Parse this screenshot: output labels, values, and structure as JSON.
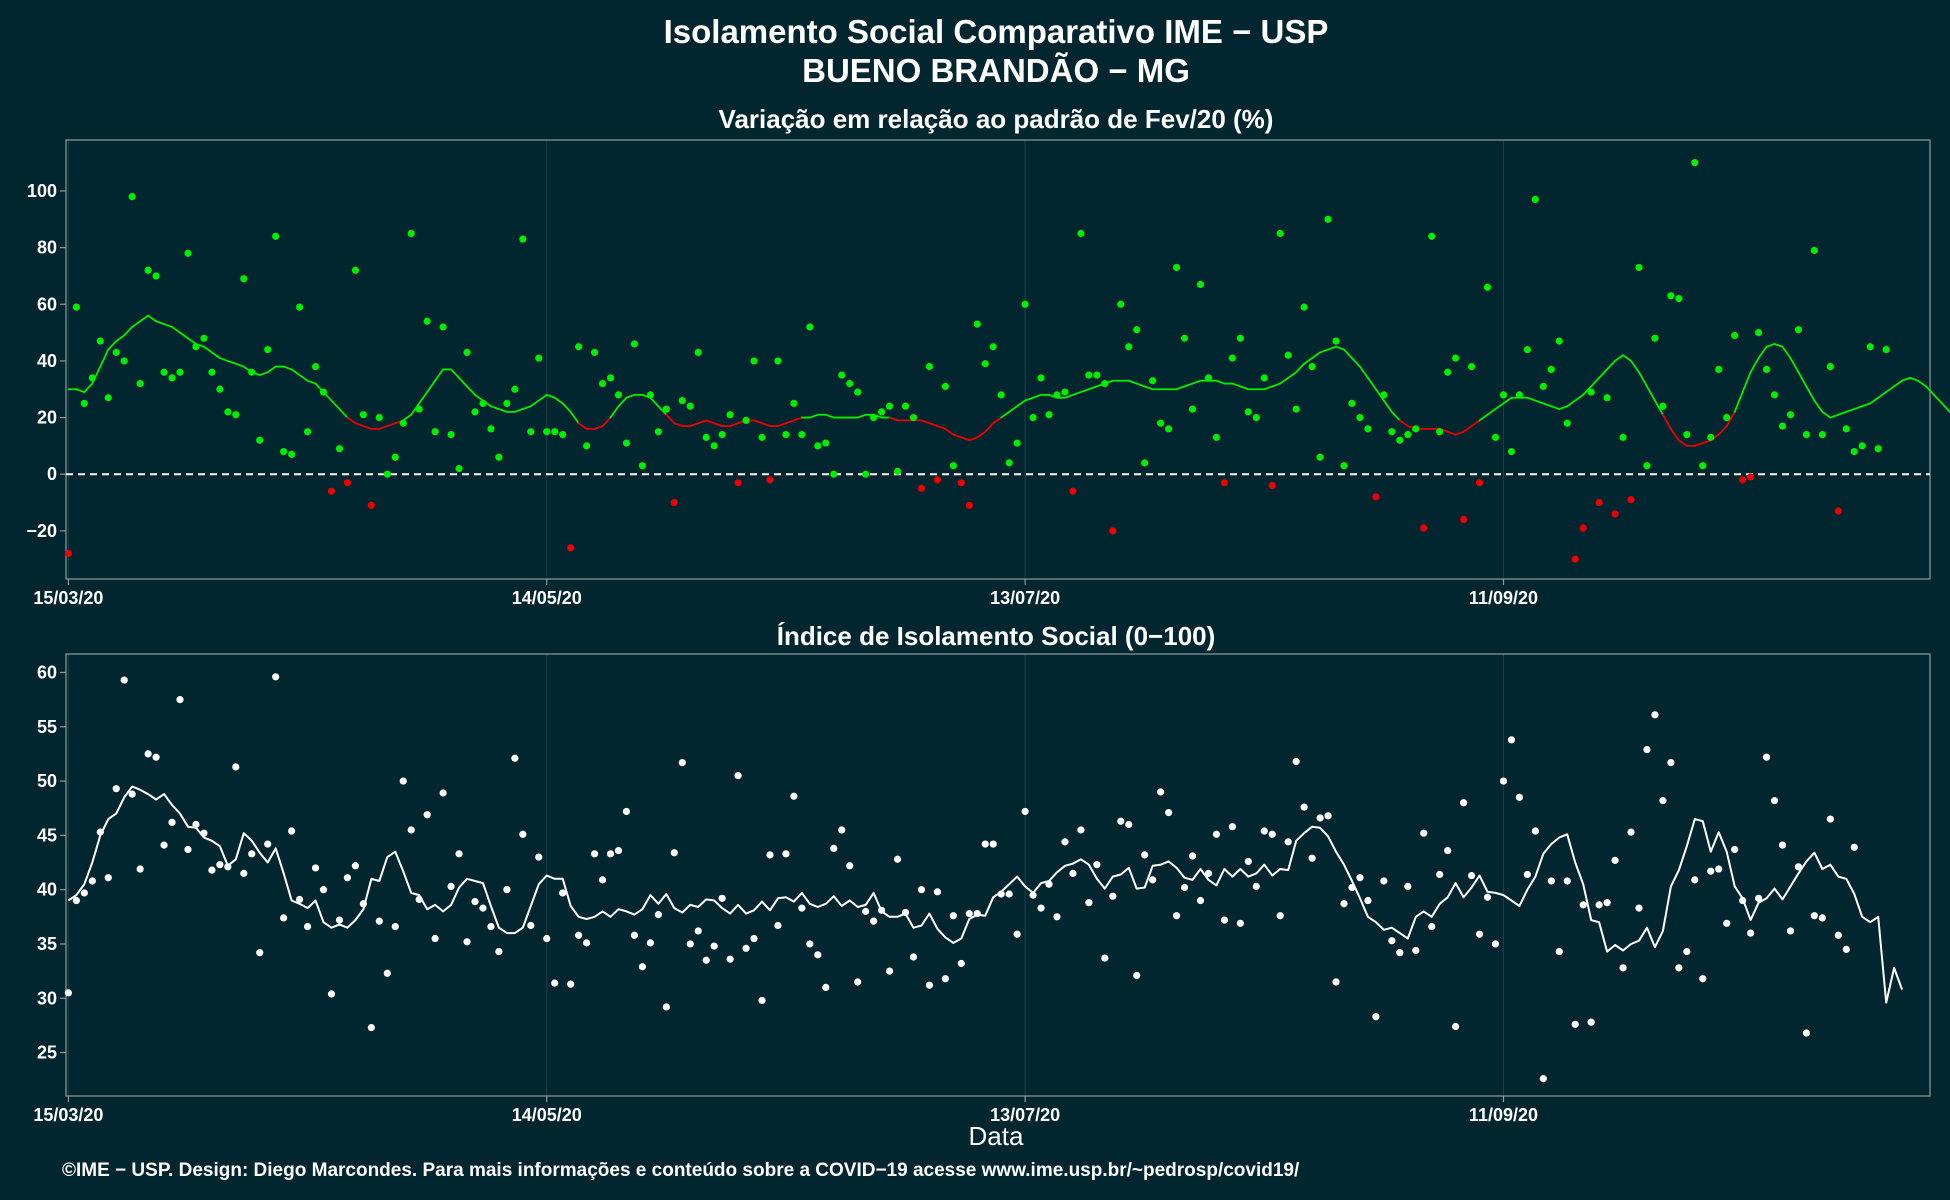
{
  "header": {
    "title_line1": "Isolamento Social Comparativo IME − USP",
    "title_line2": "BUENO BRANDÃO − MG"
  },
  "x_axis_label": "Data",
  "footer": "©IME − USP. Design: Diego Marcondes. Para mais informações e conteúdo sobre a COVID−19 acesse www.ime.usp.br/~pedrosp/covid19/",
  "colors": {
    "background": "#02262f",
    "positive": "#00ee00",
    "negative": "#ee0000",
    "index": "#ffffff",
    "frame": "#8a9aa0",
    "grid": "#1c3c44"
  },
  "chart_data": [
    {
      "type": "scatter",
      "title": "Variação em relação ao padrão de Fev/20 (%)",
      "x_start": "15/03/20",
      "x_tick_labels": [
        "15/03/20",
        "14/05/20",
        "13/07/20",
        "11/09/20"
      ],
      "x_tick_days": [
        0,
        60,
        120,
        180
      ],
      "xlim_days": [
        -0.3,
        233.5
      ],
      "ylim": [
        -37,
        118
      ],
      "y_ticks": [
        -20,
        0,
        20,
        40,
        60,
        80,
        100
      ],
      "reference_line": 0,
      "grid": true,
      "points": [
        -28,
        59,
        25,
        34,
        47,
        27,
        43,
        40,
        98,
        32,
        72,
        70,
        36,
        34,
        36,
        78,
        45,
        48,
        36,
        30,
        22,
        21,
        69,
        36,
        12,
        44,
        84,
        8,
        7,
        59,
        15,
        38,
        29,
        -6,
        9,
        -3,
        72,
        21,
        -11,
        20,
        0,
        6,
        18,
        85,
        23,
        54,
        15,
        52,
        14,
        2,
        43,
        22,
        25,
        16,
        6,
        25,
        30,
        83,
        15,
        41,
        15,
        15,
        14,
        -26,
        45,
        10,
        43,
        32,
        34,
        28,
        11,
        46,
        3,
        28,
        15,
        23,
        -10,
        26,
        24,
        43,
        13,
        10,
        14,
        21,
        -3,
        19,
        40,
        13,
        -2,
        40,
        14,
        25,
        14,
        52,
        10,
        11,
        0,
        35,
        32,
        29,
        0,
        20,
        22,
        24,
        1,
        24,
        20,
        -5,
        38,
        -2,
        31,
        3,
        -3,
        -11,
        53,
        39,
        45,
        28,
        4,
        11,
        60,
        20,
        34,
        21,
        28,
        29,
        -6,
        85,
        35,
        35,
        32,
        -20,
        60,
        45,
        51,
        4,
        33,
        18,
        16,
        73,
        48,
        23,
        67,
        34,
        13,
        -3,
        41,
        48,
        22,
        20,
        34,
        -4,
        85,
        42,
        23,
        59,
        38,
        6,
        90,
        47,
        3,
        25,
        20,
        16,
        -8,
        28,
        15,
        12,
        14,
        16,
        -19,
        84,
        15,
        36,
        41,
        -16,
        38,
        -3,
        66,
        13,
        28,
        8,
        28,
        44,
        97,
        31,
        37,
        47,
        18,
        -30,
        -19,
        29,
        -10,
        27,
        -14,
        13,
        -9,
        73,
        3,
        48,
        24,
        63,
        62,
        14,
        110,
        3,
        13,
        37,
        20,
        49,
        -2,
        -1,
        50,
        37,
        28,
        17,
        21,
        51,
        14,
        79,
        14,
        38,
        -13,
        16,
        8,
        10,
        45,
        9,
        44
      ],
      "smooth_line": [
        30,
        30,
        29,
        32,
        38,
        44,
        47,
        49,
        52,
        54,
        56,
        54,
        53,
        52,
        50,
        48,
        46,
        45,
        43,
        41,
        40,
        39,
        38,
        36,
        35,
        36,
        38,
        38,
        37,
        35,
        33,
        32,
        29,
        26,
        23,
        20,
        18,
        17,
        16,
        16,
        17,
        18,
        19,
        21,
        25,
        29,
        33,
        37,
        37,
        34,
        31,
        28,
        26,
        24,
        23,
        22,
        22,
        23,
        24,
        26,
        28,
        27,
        25,
        22,
        18,
        16,
        16,
        17,
        20,
        24,
        27,
        28,
        28,
        27,
        24,
        21,
        18,
        17,
        17,
        18,
        19,
        18,
        17,
        17,
        18,
        19,
        19,
        18,
        17,
        17,
        18,
        19,
        20,
        20,
        21,
        21,
        20,
        20,
        20,
        20,
        21,
        21,
        20,
        20,
        19,
        19,
        19,
        19,
        18,
        17,
        16,
        14,
        13,
        12,
        13,
        15,
        18,
        20,
        22,
        24,
        26,
        27,
        28,
        28,
        27,
        27,
        28,
        29,
        30,
        31,
        32,
        33,
        33,
        33,
        32,
        31,
        30,
        30,
        30,
        30,
        31,
        32,
        33,
        33,
        33,
        32,
        32,
        31,
        30,
        30,
        30,
        31,
        32,
        34,
        36,
        39,
        41,
        43,
        44,
        45,
        44,
        41,
        38,
        34,
        30,
        26,
        22,
        19,
        17,
        16,
        16,
        16,
        16,
        15,
        14,
        15,
        17,
        19,
        21,
        23,
        25,
        27,
        27,
        27,
        26,
        25,
        24,
        23,
        24,
        26,
        28,
        31,
        34,
        37,
        40,
        42,
        40,
        36,
        31,
        26,
        21,
        16,
        12,
        10,
        10,
        11,
        12,
        14,
        17,
        22,
        29,
        36,
        41,
        45,
        46,
        45,
        41,
        36,
        31,
        26,
        22,
        20,
        21,
        22,
        23,
        24,
        25,
        27,
        29,
        31,
        33,
        34,
        33,
        31,
        28,
        25,
        22,
        19,
        17,
        16,
        16,
        16
      ]
    },
    {
      "type": "scatter",
      "title": "Índice de Isolamento Social (0−100)",
      "x_start": "15/03/20",
      "x_tick_labels": [
        "15/03/20",
        "14/05/20",
        "13/07/20",
        "11/09/20"
      ],
      "x_tick_days": [
        0,
        60,
        120,
        180
      ],
      "xlim_days": [
        -0.3,
        233.5
      ],
      "ylim": [
        21,
        61.7
      ],
      "y_ticks": [
        25,
        30,
        35,
        40,
        45,
        50,
        55,
        60
      ],
      "xlabel": "Data",
      "grid": true,
      "points": [
        30.5,
        39,
        39.7,
        40.8,
        45.3,
        41.1,
        49.3,
        59.3,
        48.8,
        41.9,
        52.5,
        52.2,
        44.1,
        46.2,
        57.5,
        43.7,
        46,
        45.2,
        41.8,
        42.3,
        42.1,
        51.3,
        41.5,
        43.3,
        34.2,
        44.2,
        59.6,
        37.4,
        45.4,
        39.1,
        36.6,
        42,
        40,
        30.4,
        37.2,
        41.1,
        42.2,
        38.7,
        27.3,
        37.1,
        32.3,
        36.6,
        50,
        45.5,
        39.1,
        46.9,
        35.5,
        48.9,
        40.3,
        43.3,
        35.2,
        38.9,
        38.3,
        36.6,
        34.3,
        40,
        52.1,
        45.1,
        36.7,
        43,
        35.5,
        31.4,
        39.7,
        31.3,
        35.8,
        35.1,
        43.3,
        40.9,
        43.3,
        43.6,
        47.2,
        35.8,
        32.9,
        35.1,
        37.7,
        29.2,
        43.4,
        51.7,
        35,
        36.2,
        33.5,
        34.8,
        39.2,
        33.6,
        50.5,
        34.6,
        35.5,
        29.8,
        43.2,
        36.7,
        43.3,
        48.6,
        38.3,
        35,
        34,
        31,
        43.8,
        45.5,
        42.2,
        31.5,
        38,
        37.1,
        38.1,
        32.5,
        42.8,
        37.9,
        33.8,
        40,
        31.2,
        39.8,
        31.8,
        37.6,
        33.2,
        37.8,
        37.8,
        44.2,
        44.2,
        39.6,
        39.6,
        35.9,
        47.2,
        39.5,
        38.3,
        40.5,
        37.5,
        44.4,
        41.5,
        45.5,
        38.8,
        42.3,
        33.7,
        39.4,
        46.3,
        46,
        32.1,
        43.2,
        40.9,
        49,
        47.1,
        37.6,
        40.2,
        43.1,
        39,
        41.5,
        45.1,
        37.2,
        45.8,
        36.9,
        42.6,
        40.3,
        45.4,
        45.1,
        37.6,
        44.4,
        51.8,
        47.6,
        42.9,
        46.6,
        46.8,
        31.5,
        38.7,
        40.2,
        41.1,
        39,
        28.3,
        40.8,
        35.3,
        34.2,
        40.3,
        34.4,
        45.2,
        36.6,
        41.4,
        43.6,
        27.4,
        48,
        41.3,
        35.9,
        39.3,
        35,
        50,
        53.8,
        48.5,
        41.4,
        45.4,
        22.6,
        40.8,
        34.3,
        40.8,
        27.6,
        38.6,
        27.8,
        38.6,
        38.8,
        42.7,
        32.8,
        45.3,
        38.3,
        52.9,
        56.1,
        48.2,
        51.7,
        32.8,
        34.3,
        40.9,
        31.8,
        41.7,
        41.9,
        36.9,
        43.7,
        39,
        36,
        39.2,
        52.2,
        48.2,
        44.1,
        36.2,
        42.1,
        26.8,
        37.6,
        37.4,
        46.5,
        35.8,
        34.5,
        43.9
      ],
      "smooth_line": [
        39,
        39.5,
        40.5,
        42.5,
        45,
        46.5,
        47,
        48.5,
        49.5,
        49.2,
        48.8,
        48.3,
        48.8,
        47.8,
        47,
        45.8,
        45.7,
        44.8,
        44.5,
        44,
        42.2,
        42.8,
        45.2,
        44.5,
        43.4,
        42.5,
        43.8,
        41.5,
        39,
        38.7,
        38.3,
        39,
        37,
        36.5,
        36.8,
        36.5,
        37.2,
        38.2,
        41,
        40.8,
        43,
        43.5,
        41.7,
        39.7,
        39.5,
        38.2,
        38.6,
        38,
        38.6,
        40.2,
        41,
        40.8,
        40.6,
        38.5,
        36.5,
        36,
        36,
        36.5,
        38.5,
        40.5,
        41.3,
        41,
        41,
        38.5,
        37.5,
        37.3,
        37.5,
        38,
        37.5,
        38.2,
        38,
        37.7,
        38.2,
        39.5,
        38.7,
        39.6,
        38.3,
        37.9,
        38.6,
        38.4,
        39.1,
        39,
        38.3,
        37.8,
        38.6,
        37.8,
        38.1,
        38.9,
        38.1,
        39.2,
        39.3,
        38.9,
        39.7,
        38.7,
        38.4,
        38.7,
        39.4,
        38.5,
        39,
        38.4,
        38.6,
        39.7,
        38,
        37.5,
        37.5,
        37.8,
        36.5,
        36.7,
        37.8,
        36.4,
        35.6,
        35.1,
        35.5,
        37.3,
        37.7,
        37.6,
        39.3,
        39.8,
        40.5,
        41.2,
        40.3,
        39.7,
        40.6,
        40.8,
        41.6,
        42.2,
        42.4,
        42.8,
        42.3,
        41,
        40.1,
        41.2,
        41.4,
        42,
        40.1,
        40.2,
        42.2,
        42.3,
        42.6,
        42,
        41.1,
        40.9,
        41.9,
        40.9,
        40.4,
        41.9,
        41.2,
        41.9,
        41.2,
        41.5,
        42.3,
        41.3,
        41.9,
        41.8,
        44.5,
        45.2,
        45.8,
        45.7,
        44.9,
        43.5,
        42.3,
        40.8,
        39.2,
        37.5,
        37,
        36.3,
        36.5,
        36,
        35.5,
        37.5,
        38,
        37.5,
        38.7,
        39.3,
        40.6,
        39.3,
        40.2,
        41.3,
        39.8,
        39.7,
        39.5,
        39,
        38.5,
        40,
        41.2,
        43.3,
        44.2,
        44.8,
        45.1,
        42.5,
        40.5,
        37.2,
        37,
        34.3,
        34.9,
        34.4,
        35,
        35.3,
        36.5,
        34.7,
        36.2,
        40.3,
        41.8,
        44,
        46.5,
        46.3,
        43.5,
        45.3,
        43.5,
        40.3,
        39.2,
        37.2,
        38.8,
        39.2,
        40.1,
        39.1,
        40.3,
        41.5,
        42.6,
        43.4,
        41.9,
        42.3,
        41.2,
        41,
        39.6,
        37.5,
        37,
        37.5,
        29.6,
        32.8,
        30.8
      ]
    }
  ]
}
